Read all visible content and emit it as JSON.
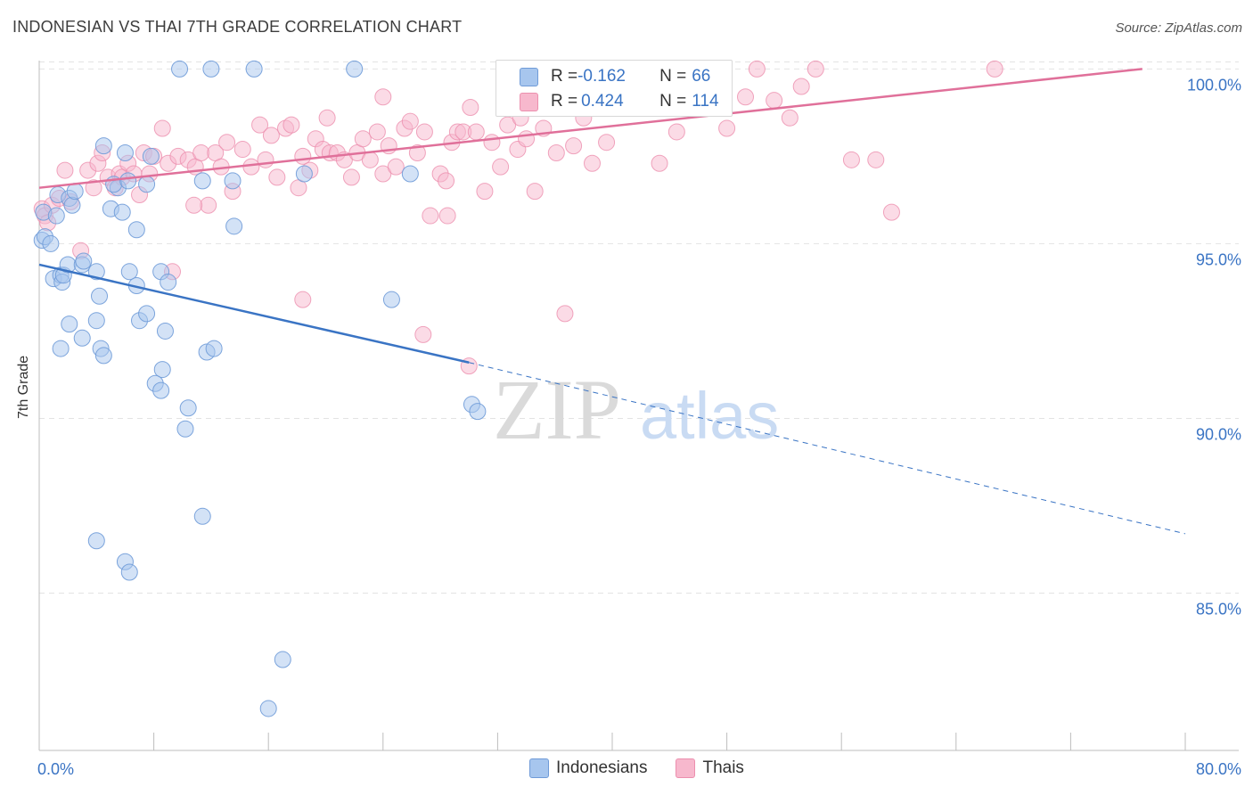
{
  "title": "INDONESIAN VS THAI 7TH GRADE CORRELATION CHART",
  "source": "Source: ZipAtlas.com",
  "watermark": {
    "zip": "ZIP",
    "atlas": "atlas"
  },
  "legend_box": {
    "rows": [
      {
        "r_label": "R = ",
        "r_value": "-0.162",
        "n_label": "N = ",
        "n_value": "66"
      },
      {
        "r_label": "R = ",
        "r_value": "0.424",
        "n_label": "N = ",
        "n_value": "114"
      }
    ]
  },
  "colors": {
    "indonesians_fill": "#a7c6ee",
    "indonesians_stroke": "#6f9bd8",
    "indonesians_line": "#3a74c4",
    "thais_fill": "#f7b8cd",
    "thais_stroke": "#ec8fae",
    "thais_line": "#e0709a",
    "tick_text": "#3a74c4",
    "grid": "#e3e3e3"
  },
  "chart_data": {
    "type": "scatter",
    "title": "INDONESIAN VS THAI 7TH GRADE CORRELATION CHART",
    "xlabel": "",
    "ylabel": "7th Grade",
    "xlim": [
      0,
      80
    ],
    "ylim": [
      80.5,
      100.8
    ],
    "x_tick_labels": [
      "0.0%",
      "80.0%"
    ],
    "y_ticks": [
      85,
      90,
      95,
      100
    ],
    "y_tick_labels": [
      "85.0%",
      "90.0%",
      "95.0%",
      "100.0%"
    ],
    "grid": true,
    "legend_position": "bottom",
    "series": [
      {
        "name": "Indonesians",
        "r": -0.162,
        "n": 66,
        "trend": {
          "x": [
            0,
            30
          ],
          "y": [
            94.4,
            91.6
          ]
        },
        "trend_dashed": {
          "x": [
            30,
            80
          ],
          "y": [
            91.6,
            86.7
          ]
        },
        "points": [
          [
            0.2,
            95.1
          ],
          [
            0.3,
            95.9
          ],
          [
            0.4,
            95.2
          ],
          [
            0.8,
            95.0
          ],
          [
            1.0,
            94.0
          ],
          [
            1.2,
            95.8
          ],
          [
            1.3,
            96.4
          ],
          [
            1.5,
            94.1
          ],
          [
            1.6,
            93.9
          ],
          [
            1.7,
            94.1
          ],
          [
            2.0,
            94.4
          ],
          [
            2.1,
            96.3
          ],
          [
            2.3,
            96.1
          ],
          [
            2.5,
            96.5
          ],
          [
            2.1,
            92.7
          ],
          [
            1.5,
            92.0
          ],
          [
            3.0,
            94.4
          ],
          [
            3.0,
            92.3
          ],
          [
            3.1,
            94.5
          ],
          [
            4.0,
            94.2
          ],
          [
            4.5,
            97.8
          ],
          [
            4.2,
            93.5
          ],
          [
            4.0,
            92.8
          ],
          [
            4.3,
            92.0
          ],
          [
            4.5,
            91.8
          ],
          [
            5.5,
            96.6
          ],
          [
            5.0,
            96.0
          ],
          [
            5.8,
            95.9
          ],
          [
            5.2,
            96.7
          ],
          [
            6.0,
            97.6
          ],
          [
            6.2,
            96.8
          ],
          [
            6.3,
            94.2
          ],
          [
            6.8,
            93.8
          ],
          [
            6.8,
            95.4
          ],
          [
            7.5,
            96.7
          ],
          [
            7.8,
            97.5
          ],
          [
            7.0,
            92.8
          ],
          [
            7.5,
            93.0
          ],
          [
            8.5,
            94.2
          ],
          [
            8.8,
            92.5
          ],
          [
            8.6,
            91.4
          ],
          [
            8.1,
            91.0
          ],
          [
            8.5,
            90.8
          ],
          [
            9.0,
            93.9
          ],
          [
            10.2,
            89.7
          ],
          [
            10.4,
            90.3
          ],
          [
            11.4,
            96.8
          ],
          [
            11.4,
            87.2
          ],
          [
            11.7,
            91.9
          ],
          [
            12.2,
            92.0
          ],
          [
            13.6,
            95.5
          ],
          [
            13.5,
            96.8
          ],
          [
            16.0,
            81.7
          ],
          [
            17.0,
            83.1
          ],
          [
            18.5,
            97.0
          ],
          [
            24.6,
            93.4
          ],
          [
            25.9,
            97.0
          ],
          [
            30.2,
            90.4
          ],
          [
            30.6,
            90.2
          ],
          [
            9.8,
            100.0
          ],
          [
            12.0,
            100.0
          ],
          [
            15.0,
            100.0
          ],
          [
            22.0,
            100.0
          ],
          [
            4.0,
            86.5
          ],
          [
            6.0,
            85.9
          ],
          [
            6.3,
            85.6
          ]
        ]
      },
      {
        "name": "Thais",
        "r": 0.424,
        "n": 114,
        "trend": {
          "x": [
            0,
            77
          ],
          "y": [
            96.6,
            100.0
          ]
        },
        "points": [
          [
            0.2,
            96.0
          ],
          [
            0.4,
            95.8
          ],
          [
            0.6,
            95.6
          ],
          [
            0.9,
            96.1
          ],
          [
            1.4,
            96.3
          ],
          [
            1.8,
            97.1
          ],
          [
            2.2,
            96.2
          ],
          [
            2.9,
            94.8
          ],
          [
            3.4,
            97.1
          ],
          [
            3.8,
            96.6
          ],
          [
            4.1,
            97.3
          ],
          [
            4.4,
            97.6
          ],
          [
            4.8,
            96.9
          ],
          [
            5.3,
            96.6
          ],
          [
            5.6,
            97.0
          ],
          [
            5.8,
            96.9
          ],
          [
            6.2,
            97.3
          ],
          [
            6.6,
            97.0
          ],
          [
            7.0,
            96.4
          ],
          [
            7.3,
            97.6
          ],
          [
            7.7,
            97.0
          ],
          [
            8.0,
            97.5
          ],
          [
            8.6,
            98.3
          ],
          [
            9.0,
            97.3
          ],
          [
            9.3,
            94.2
          ],
          [
            9.7,
            97.5
          ],
          [
            10.4,
            97.4
          ],
          [
            10.9,
            97.2
          ],
          [
            11.3,
            97.6
          ],
          [
            11.8,
            96.1
          ],
          [
            12.3,
            97.6
          ],
          [
            12.7,
            97.2
          ],
          [
            13.1,
            97.9
          ],
          [
            13.5,
            96.5
          ],
          [
            14.2,
            97.7
          ],
          [
            14.8,
            97.2
          ],
          [
            15.4,
            98.4
          ],
          [
            15.8,
            97.4
          ],
          [
            16.2,
            98.1
          ],
          [
            16.6,
            96.9
          ],
          [
            17.2,
            98.3
          ],
          [
            17.6,
            98.4
          ],
          [
            18.1,
            96.6
          ],
          [
            18.4,
            97.5
          ],
          [
            18.9,
            97.1
          ],
          [
            19.3,
            98.0
          ],
          [
            19.8,
            97.7
          ],
          [
            20.3,
            97.6
          ],
          [
            20.8,
            97.6
          ],
          [
            21.3,
            97.4
          ],
          [
            21.8,
            96.9
          ],
          [
            22.2,
            97.6
          ],
          [
            22.6,
            98.0
          ],
          [
            23.1,
            97.4
          ],
          [
            23.6,
            98.2
          ],
          [
            24.0,
            97.0
          ],
          [
            24.4,
            97.8
          ],
          [
            24.9,
            97.2
          ],
          [
            25.5,
            98.3
          ],
          [
            25.9,
            98.5
          ],
          [
            26.4,
            97.6
          ],
          [
            26.9,
            98.2
          ],
          [
            27.3,
            95.8
          ],
          [
            28.0,
            97.0
          ],
          [
            28.4,
            96.8
          ],
          [
            28.8,
            97.9
          ],
          [
            29.2,
            98.2
          ],
          [
            29.6,
            98.2
          ],
          [
            30.1,
            98.9
          ],
          [
            30.5,
            98.2
          ],
          [
            31.1,
            96.5
          ],
          [
            31.6,
            97.9
          ],
          [
            32.2,
            97.2
          ],
          [
            32.7,
            98.4
          ],
          [
            33.4,
            97.7
          ],
          [
            34.0,
            98.0
          ],
          [
            34.6,
            96.5
          ],
          [
            35.2,
            98.3
          ],
          [
            35.8,
            99.1
          ],
          [
            36.1,
            97.6
          ],
          [
            36.7,
            93.0
          ],
          [
            37.3,
            97.8
          ],
          [
            38.0,
            98.6
          ],
          [
            38.6,
            97.3
          ],
          [
            39.6,
            97.9
          ],
          [
            40.4,
            99.3
          ],
          [
            41.2,
            98.9
          ],
          [
            41.8,
            99.3
          ],
          [
            42.6,
            99.6
          ],
          [
            43.3,
            97.3
          ],
          [
            44.5,
            98.2
          ],
          [
            45.7,
            99.1
          ],
          [
            47.0,
            100.0
          ],
          [
            48.0,
            98.3
          ],
          [
            49.3,
            99.2
          ],
          [
            50.1,
            100.0
          ],
          [
            51.3,
            99.1
          ],
          [
            52.4,
            98.6
          ],
          [
            53.2,
            99.5
          ],
          [
            54.2,
            100.0
          ],
          [
            56.7,
            97.4
          ],
          [
            58.4,
            97.4
          ],
          [
            59.5,
            95.9
          ],
          [
            66.7,
            100.0
          ],
          [
            18.4,
            93.4
          ],
          [
            24.0,
            99.2
          ],
          [
            28.5,
            95.8
          ],
          [
            26.8,
            92.4
          ],
          [
            30.0,
            91.5
          ],
          [
            45.0,
            99.8
          ],
          [
            47.5,
            99.6
          ],
          [
            38.8,
            99.2
          ],
          [
            33.6,
            98.6
          ],
          [
            20.1,
            98.6
          ],
          [
            10.8,
            96.1
          ]
        ]
      }
    ]
  },
  "legend": {
    "items": [
      "Indonesians",
      "Thais"
    ]
  }
}
